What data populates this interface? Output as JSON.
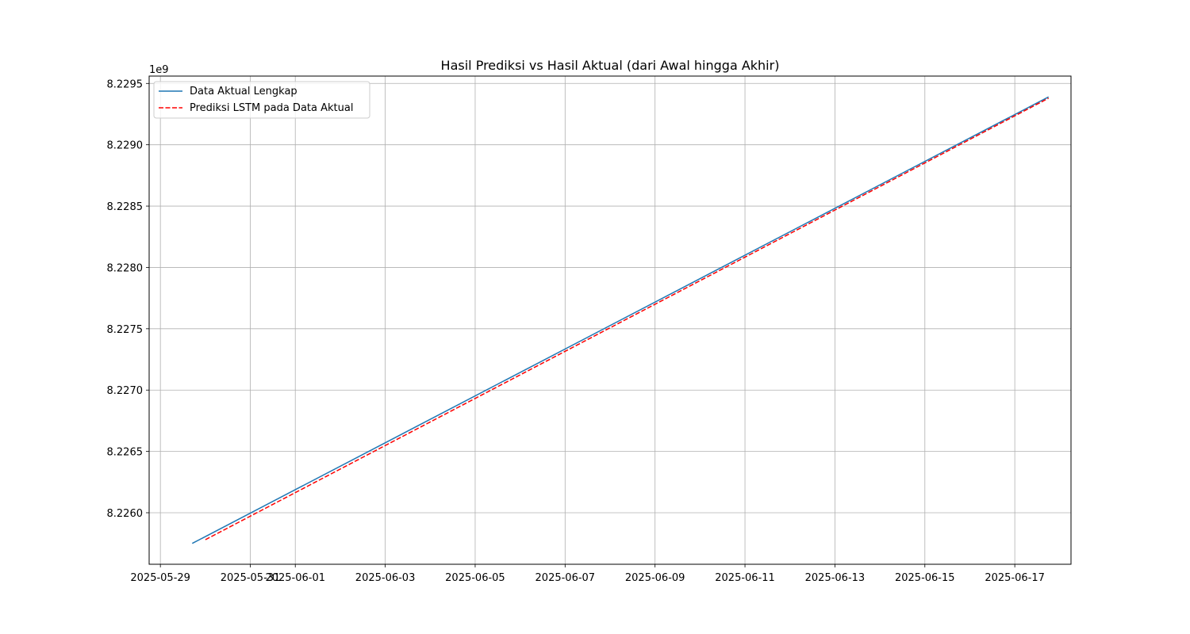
{
  "chart_data": {
    "type": "line",
    "title": "Hasil Prediksi vs Hasil Aktual (dari Awal hingga Akhir)",
    "xlabel": "",
    "ylabel": "",
    "y_offset_label": "1e9",
    "x_tick_labels": [
      "2025-05-29",
      "2025-05-31",
      "2025-06-01",
      "2025-06-03",
      "2025-06-05",
      "2025-06-07",
      "2025-06-09",
      "2025-06-11",
      "2025-06-13",
      "2025-06-15",
      "2025-06-17"
    ],
    "y_tick_labels": [
      "8.2260",
      "8.2265",
      "8.2270",
      "8.2275",
      "8.2280",
      "8.2285",
      "8.2290",
      "8.2295"
    ],
    "y_tick_values": [
      8.226,
      8.2265,
      8.227,
      8.2275,
      8.228,
      8.2285,
      8.229,
      8.2295
    ],
    "xlim": [
      "2025-05-28T18:00",
      "2025-06-18T06:00"
    ],
    "ylim": [
      8.22558,
      8.22956
    ],
    "grid": true,
    "legend_position": "upper-left",
    "series": [
      {
        "name": "Data Aktual Lengkap",
        "color": "#1f77b4",
        "style": "solid",
        "x": [
          "2025-05-29T17:00",
          "2025-06-17T18:00"
        ],
        "y": [
          8.22575,
          8.22939
        ]
      },
      {
        "name": "Prediksi LSTM pada Data Aktual",
        "color": "#ff0000",
        "style": "dashed",
        "x": [
          "2025-05-30T00:00",
          "2025-06-17T18:00"
        ],
        "y": [
          8.22578,
          8.22938
        ]
      }
    ]
  }
}
